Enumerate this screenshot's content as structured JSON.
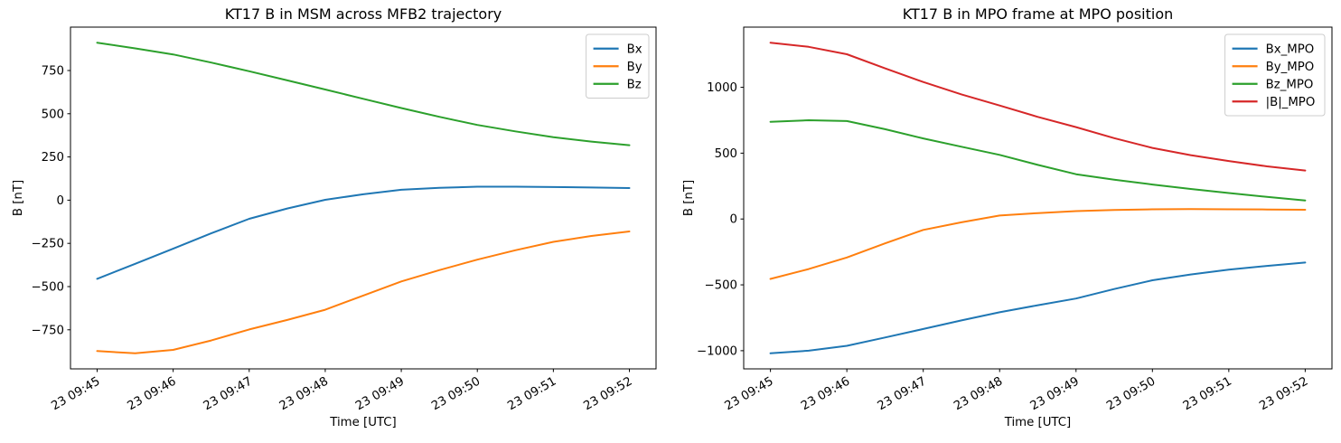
{
  "figure": {
    "background": "#ffffff",
    "type": "matplotlib-style line figure, two panels"
  },
  "chart_data": [
    {
      "type": "line",
      "title": "KT17 B in MSM across MFB2 trajectory",
      "xlabel": "Time [UTC]",
      "ylabel": "B [nT]",
      "x_tick_labels": [
        "23 09:45",
        "23 09:46",
        "23 09:47",
        "23 09:48",
        "23 09:49",
        "23 09:50",
        "23 09:51",
        "23 09:52"
      ],
      "x_tick_rotation_deg": 30,
      "samples_per_tick_interval": 2,
      "y_ticks": [
        -750,
        -500,
        -250,
        0,
        250,
        500,
        750
      ],
      "y_tick_labels": [
        "−750",
        "−500",
        "−250",
        "0",
        "250",
        "500",
        "750"
      ],
      "ylim": [
        -976,
        1001
      ],
      "grid": false,
      "legend_position": "upper right",
      "series": [
        {
          "name": "Bx",
          "color": "#1f77b4",
          "values": [
            -455,
            -368,
            -281,
            -192,
            -108,
            -48,
            2,
            34,
            60,
            71,
            78,
            78,
            76,
            73,
            70
          ]
        },
        {
          "name": "By",
          "color": "#ff7f0e",
          "values": [
            -873,
            -886,
            -866,
            -812,
            -748,
            -693,
            -634,
            -552,
            -470,
            -405,
            -344,
            -290,
            -241,
            -207,
            -181
          ]
        },
        {
          "name": "Bz",
          "color": "#2ca02c",
          "values": [
            911,
            878,
            843,
            796,
            746,
            693,
            640,
            586,
            533,
            482,
            435,
            398,
            364,
            339,
            318
          ]
        }
      ]
    },
    {
      "type": "line",
      "title": "KT17 B in MPO frame at MPO position",
      "xlabel": "Time [UTC]",
      "ylabel": "B [nT]",
      "x_tick_labels": [
        "23 09:45",
        "23 09:46",
        "23 09:47",
        "23 09:48",
        "23 09:49",
        "23 09:50",
        "23 09:51",
        "23 09:52"
      ],
      "x_tick_rotation_deg": 30,
      "samples_per_tick_interval": 2,
      "y_ticks": [
        -1000,
        -500,
        0,
        500,
        1000
      ],
      "y_tick_labels": [
        "−1000",
        "−500",
        "0",
        "500",
        "1000"
      ],
      "ylim": [
        -1138,
        1457
      ],
      "grid": false,
      "legend_position": "upper right",
      "series": [
        {
          "name": "Bx_MPO",
          "color": "#1f77b4",
          "values": [
            -1020,
            -1000,
            -963,
            -900,
            -835,
            -770,
            -708,
            -655,
            -604,
            -532,
            -465,
            -421,
            -384,
            -356,
            -331
          ]
        },
        {
          "name": "By_MPO",
          "color": "#ff7f0e",
          "values": [
            -455,
            -380,
            -292,
            -185,
            -83,
            -25,
            26,
            45,
            60,
            68,
            74,
            75,
            74,
            72,
            70
          ]
        },
        {
          "name": "Bz_MPO",
          "color": "#2ca02c",
          "values": [
            738,
            750,
            744,
            682,
            612,
            549,
            487,
            411,
            340,
            299,
            262,
            228,
            197,
            168,
            141
          ]
        },
        {
          "name": "|B|_MPO",
          "color": "#d62728",
          "values": [
            1339,
            1307,
            1251,
            1144,
            1040,
            946,
            862,
            775,
            698,
            614,
            540,
            485,
            440,
            400,
            368
          ]
        }
      ]
    }
  ]
}
